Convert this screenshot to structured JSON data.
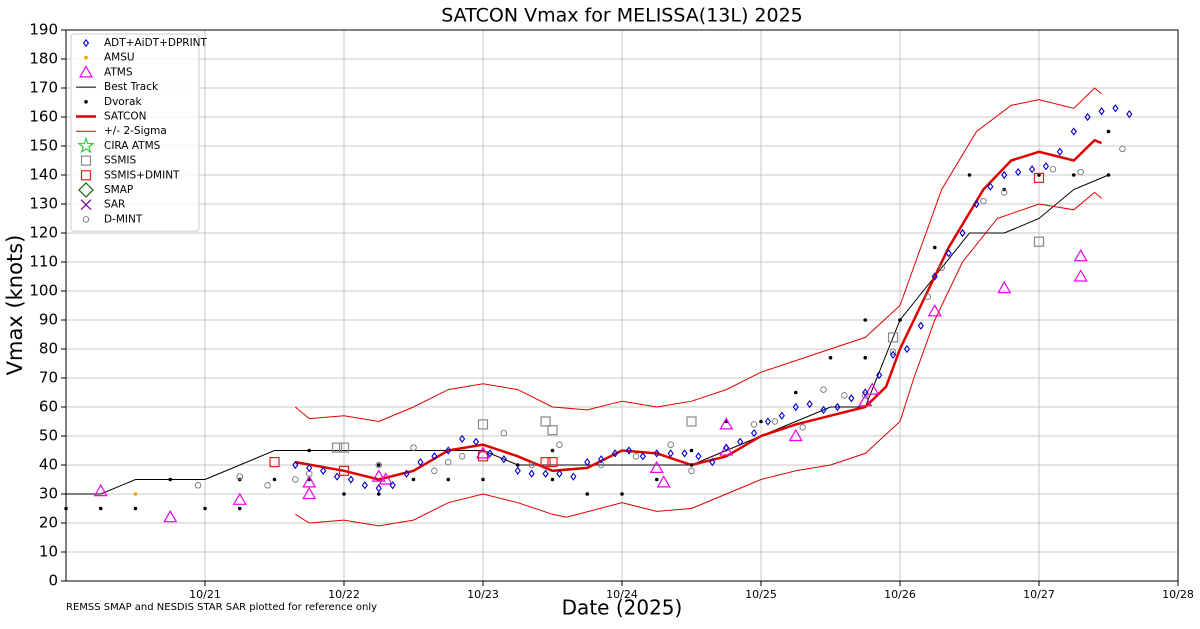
{
  "chart_data": {
    "type": "scatter",
    "title": "SATCON Vmax for MELISSA(13L) 2025",
    "xlabel": "Date (2025)",
    "ylabel": "Vmax (knots)",
    "footnote": "REMSS SMAP and NESDIS STAR SAR plotted for reference only",
    "xlim": [
      20,
      28
    ],
    "ylim": [
      0,
      190
    ],
    "xticks": [
      {
        "value": 21,
        "label": "10/21"
      },
      {
        "value": 22,
        "label": "10/22"
      },
      {
        "value": 23,
        "label": "10/23"
      },
      {
        "value": 24,
        "label": "10/24"
      },
      {
        "value": 25,
        "label": "10/25"
      },
      {
        "value": 26,
        "label": "10/26"
      },
      {
        "value": 27,
        "label": "10/27"
      },
      {
        "value": 28,
        "label": "10/28"
      }
    ],
    "yticks": [
      0,
      10,
      20,
      30,
      40,
      50,
      60,
      70,
      80,
      90,
      100,
      110,
      120,
      130,
      140,
      150,
      160,
      170,
      180,
      190
    ],
    "grid": true,
    "legend": "upper left",
    "series": [
      {
        "name": "ADT+AiDT+DPRINT",
        "color": "#0000cc",
        "marker": "diamond",
        "x": [
          21.65,
          21.75,
          21.85,
          21.95,
          22.05,
          22.15,
          22.25,
          22.35,
          22.45,
          22.55,
          22.65,
          22.75,
          22.85,
          22.95,
          23.05,
          23.15,
          23.25,
          23.35,
          23.45,
          23.55,
          23.65,
          23.75,
          23.85,
          23.95,
          24.05,
          24.15,
          24.25,
          24.35,
          24.45,
          24.55,
          24.65,
          24.75,
          24.85,
          24.95,
          25.05,
          25.15,
          25.25,
          25.35,
          25.45,
          25.55,
          25.65,
          25.75,
          25.85,
          25.95,
          26.05,
          26.15,
          26.25,
          26.35,
          26.45,
          26.55,
          26.65,
          26.75,
          26.85,
          26.95,
          27.05,
          27.15,
          27.25,
          27.35,
          27.45,
          27.55,
          27.65
        ],
        "values": [
          40,
          39,
          38,
          36,
          35,
          33,
          32,
          33,
          37,
          41,
          43,
          45,
          49,
          48,
          44,
          42,
          38,
          37,
          37,
          37,
          36,
          41,
          42,
          44,
          45,
          43,
          44,
          44,
          44,
          43,
          41,
          46,
          48,
          51,
          55,
          57,
          60,
          61,
          59,
          60,
          63,
          65,
          71,
          78,
          80,
          88,
          105,
          113,
          120,
          130,
          136,
          140,
          141,
          142,
          143,
          148,
          155,
          160,
          162,
          163,
          161
        ]
      },
      {
        "name": "AMSU",
        "color": "#f5a000",
        "marker": "dot",
        "x": [
          20.5
        ],
        "values": [
          30
        ]
      },
      {
        "name": "ATMS",
        "color": "#ee00ee",
        "marker": "triangle",
        "x": [
          20.25,
          20.75,
          21.25,
          21.75,
          21.75,
          22.25,
          22.3,
          23.0,
          24.25,
          24.3,
          24.75,
          24.75,
          25.25,
          25.75,
          25.8,
          26.25,
          26.75,
          27.3,
          27.3
        ],
        "values": [
          31,
          22,
          28,
          30,
          34,
          36,
          35,
          44,
          39,
          34,
          45,
          54,
          50,
          62,
          66,
          93,
          101,
          112,
          105
        ]
      },
      {
        "name": "Best Track",
        "color": "#000000",
        "marker": "line",
        "width": 1,
        "x": [
          20.0,
          20.25,
          20.5,
          20.75,
          21.0,
          21.25,
          21.5,
          21.75,
          22.0,
          22.5,
          23.0,
          23.25,
          23.5,
          24.0,
          24.5,
          24.75,
          25.0,
          25.25,
          25.5,
          25.75,
          26.0,
          26.25,
          26.5,
          26.75,
          27.0,
          27.25,
          27.5
        ],
        "values": [
          30,
          30,
          35,
          35,
          35,
          40,
          45,
          45,
          45,
          45,
          45,
          40,
          40,
          40,
          40,
          45,
          50,
          55,
          60,
          60,
          90,
          105,
          120,
          120,
          125,
          135,
          140
        ]
      },
      {
        "name": "Dvorak",
        "color": "#000000",
        "marker": "dot",
        "x": [
          20,
          20.25,
          20.5,
          20.75,
          21,
          21.25,
          21.25,
          21.5,
          21.75,
          21.75,
          22,
          22.25,
          22.25,
          22.5,
          22.75,
          23,
          23.25,
          23.5,
          23.5,
          23.75,
          24,
          24.25,
          24.5,
          24.5,
          24.75,
          25,
          25.25,
          25.5,
          25.75,
          25.75,
          26,
          26.25,
          26.5,
          26.75,
          27,
          27.25,
          27.5,
          27.5
        ],
        "values": [
          25,
          25,
          25,
          35,
          25,
          25,
          35,
          35,
          45,
          35,
          30,
          30,
          40,
          35,
          35,
          35,
          40,
          45,
          35,
          30,
          30,
          35,
          40,
          45,
          55,
          55,
          65,
          77,
          90,
          77,
          90,
          115,
          140,
          135,
          140,
          140,
          155,
          140
        ]
      },
      {
        "name": "SATCON",
        "color": "#e00000",
        "marker": "line",
        "width": 2.5,
        "x": [
          21.65,
          22.0,
          22.25,
          22.5,
          22.75,
          23.0,
          23.25,
          23.5,
          23.75,
          24.0,
          24.25,
          24.5,
          24.75,
          25.0,
          25.25,
          25.5,
          25.75,
          25.9,
          26.0,
          26.2,
          26.35,
          26.6,
          26.8,
          27.0,
          27.25,
          27.4,
          27.45
        ],
        "values": [
          41,
          38,
          35,
          38,
          45,
          47,
          43,
          38,
          39,
          45,
          44,
          40,
          43,
          50,
          54,
          57,
          60,
          67,
          80,
          100,
          115,
          135,
          145,
          148,
          145,
          152,
          151
        ]
      },
      {
        "name": "+/- 2-Sigma",
        "color": "#e00000",
        "marker": "line",
        "width": 1,
        "x": [
          21.65,
          21.75,
          22.0,
          22.25,
          22.5,
          22.75,
          23.0,
          23.25,
          23.5,
          23.75,
          24.0,
          24.25,
          24.5,
          24.75,
          25.0,
          25.25,
          25.5,
          25.75,
          26.0,
          26.15,
          26.3,
          26.55,
          26.8,
          27.0,
          27.25,
          27.4,
          27.45
        ],
        "values": [
          60,
          56,
          57,
          55,
          60,
          66,
          68,
          66,
          60,
          59,
          62,
          60,
          62,
          66,
          72,
          76,
          80,
          84,
          95,
          115,
          135,
          155,
          164,
          166,
          163,
          170,
          168
        ],
        "x_lower": [
          21.65,
          21.75,
          22.0,
          22.25,
          22.5,
          22.75,
          23.0,
          23.25,
          23.5,
          23.6,
          24.0,
          24.25,
          24.5,
          24.75,
          25.0,
          25.25,
          25.5,
          25.75,
          26.0,
          26.1,
          26.25,
          26.45,
          26.7,
          27.0,
          27.25,
          27.4,
          27.45
        ],
        "values_lower": [
          23,
          20,
          21,
          19,
          21,
          27,
          30,
          27,
          23,
          22,
          27,
          24,
          25,
          30,
          35,
          38,
          40,
          44,
          55,
          70,
          90,
          110,
          125,
          130,
          128,
          134,
          132
        ]
      },
      {
        "name": "CIRA ATMS",
        "color": "#22cc22",
        "marker": "star",
        "x": [],
        "values": []
      },
      {
        "name": "SSMIS",
        "color": "#888888",
        "marker": "square",
        "x": [
          21.95,
          22.0,
          23.0,
          23.45,
          23.5,
          24.5,
          25.95,
          27.0
        ],
        "values": [
          46,
          46,
          54,
          55,
          52,
          55,
          84,
          117
        ]
      },
      {
        "name": "SSMIS+DMINT",
        "color": "#dd2222",
        "marker": "square",
        "x": [
          21.5,
          22.0,
          23.0,
          23.45,
          23.5,
          27.0
        ],
        "values": [
          41,
          38,
          43,
          41,
          41,
          139
        ]
      },
      {
        "name": "SMAP",
        "color": "#116611",
        "marker": "bigdiamond",
        "x": [],
        "values": []
      },
      {
        "name": "SAR",
        "color": "#7700aa",
        "marker": "x",
        "x": [],
        "values": []
      },
      {
        "name": "D-MINT",
        "color": "#777777",
        "marker": "circle",
        "x": [
          20.95,
          21.25,
          21.45,
          21.65,
          21.75,
          22.25,
          22.5,
          22.65,
          22.75,
          22.85,
          23.15,
          23.35,
          23.55,
          23.85,
          24.1,
          24.35,
          24.5,
          24.95,
          25.1,
          25.3,
          25.45,
          25.6,
          25.75,
          25.95,
          26.2,
          26.3,
          26.6,
          26.75,
          27.1,
          27.3,
          27.6
        ],
        "values": [
          33,
          36,
          33,
          35,
          37,
          40,
          46,
          38,
          41,
          43,
          51,
          40,
          47,
          40,
          43,
          47,
          38,
          54,
          55,
          53,
          66,
          64,
          64,
          79,
          98,
          108,
          131,
          134,
          142,
          141,
          149
        ]
      }
    ]
  }
}
